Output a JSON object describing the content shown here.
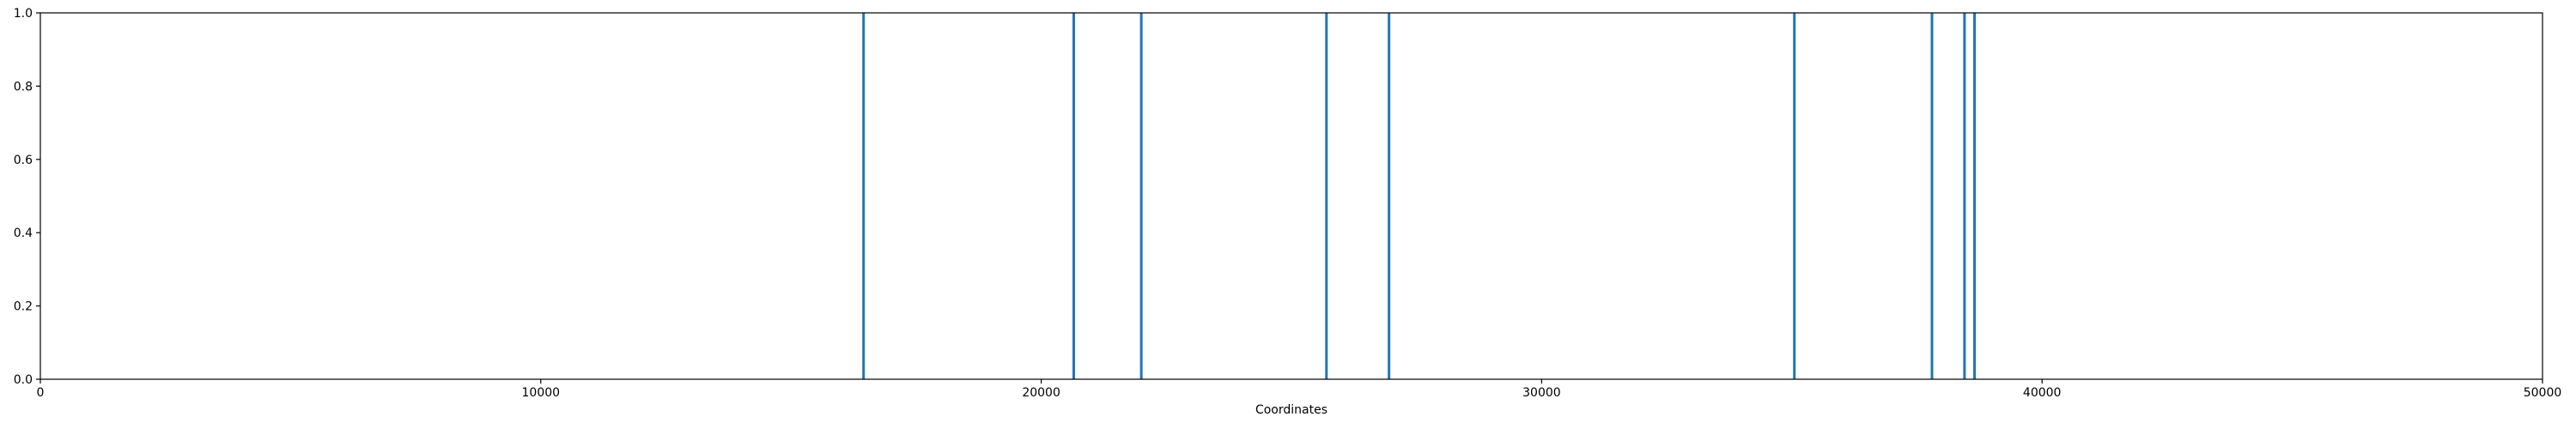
{
  "chart_data": {
    "type": "bar",
    "title": "",
    "xlabel": "Coordinates",
    "ylabel": "",
    "xlim": [
      0,
      50000
    ],
    "ylim": [
      0,
      1.0
    ],
    "grid": false,
    "x_ticks": [
      0,
      10000,
      20000,
      30000,
      40000,
      50000
    ],
    "x_tick_labels": [
      "0",
      "10000",
      "20000",
      "30000",
      "40000",
      "50000"
    ],
    "y_ticks": [
      0.0,
      0.2,
      0.4,
      0.6,
      0.8,
      1.0
    ],
    "y_tick_labels": [
      "0.0",
      "0.2",
      "0.4",
      "0.6",
      "0.8",
      "1.0"
    ],
    "series": [
      {
        "color": "#1f77b4",
        "x": [
          16450,
          20650,
          22000,
          25700,
          26950,
          35050,
          37800,
          38450,
          38650
        ],
        "values": [
          1,
          1,
          1,
          1,
          1,
          1,
          1,
          1,
          1
        ]
      }
    ]
  }
}
